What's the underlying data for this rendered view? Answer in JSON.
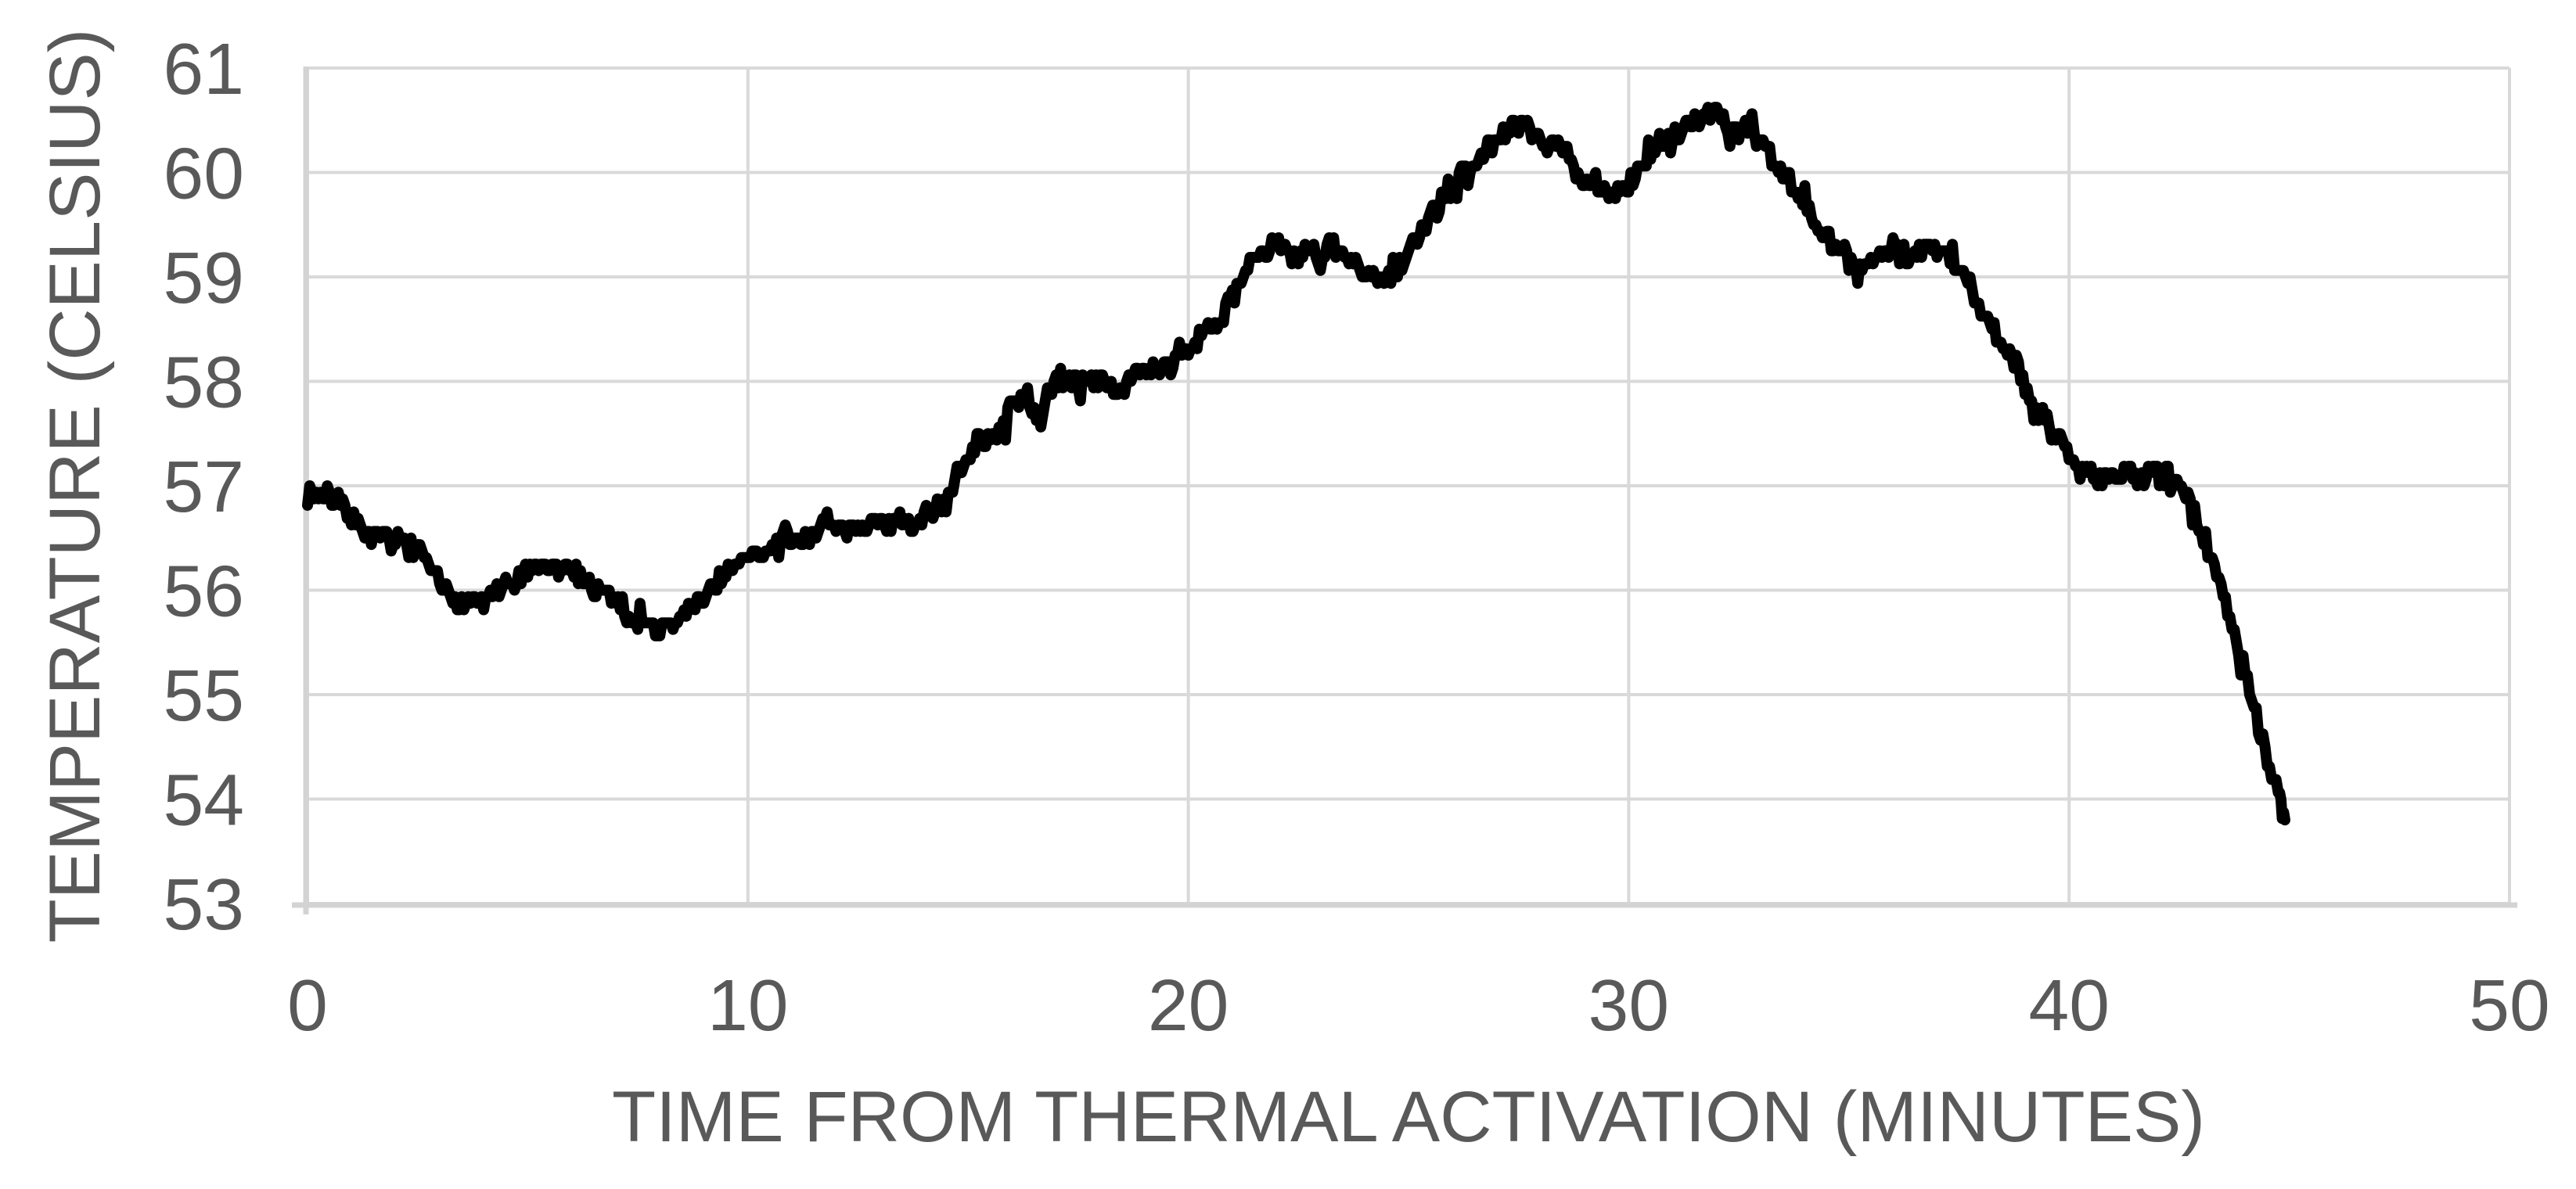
{
  "chart_data": {
    "type": "line",
    "title": "",
    "xlabel": "TIME FROM THERMAL ACTIVATION (MINUTES)",
    "ylabel": "TEMPERATURE (CELSIUS)",
    "xlim": [
      0,
      50
    ],
    "ylim": [
      53,
      61
    ],
    "x_ticks": [
      0,
      10,
      20,
      30,
      40,
      50
    ],
    "y_ticks": [
      53,
      54,
      55,
      56,
      57,
      58,
      59,
      60,
      61
    ],
    "grid": true,
    "legend_position": "none",
    "series": [
      {
        "name": "temperature",
        "points": [
          [
            0.0,
            56.95
          ],
          [
            0.25,
            56.92
          ],
          [
            0.5,
            56.88
          ],
          [
            0.75,
            56.8
          ],
          [
            1.0,
            56.7
          ],
          [
            1.25,
            56.6
          ],
          [
            1.5,
            56.52
          ],
          [
            1.75,
            56.48
          ],
          [
            2.0,
            56.45
          ],
          [
            2.25,
            56.48
          ],
          [
            2.5,
            56.35
          ],
          [
            2.75,
            56.22
          ],
          [
            3.0,
            56.05
          ],
          [
            3.25,
            55.95
          ],
          [
            3.5,
            55.9
          ],
          [
            3.75,
            55.93
          ],
          [
            4.0,
            55.9
          ],
          [
            4.25,
            55.95
          ],
          [
            4.5,
            56.02
          ],
          [
            4.75,
            56.1
          ],
          [
            5.0,
            56.15
          ],
          [
            5.25,
            56.2
          ],
          [
            5.5,
            56.22
          ],
          [
            5.75,
            56.2
          ],
          [
            6.0,
            56.17
          ],
          [
            6.25,
            56.12
          ],
          [
            6.5,
            56.02
          ],
          [
            6.75,
            55.97
          ],
          [
            7.0,
            55.92
          ],
          [
            7.25,
            55.78
          ],
          [
            7.5,
            55.7
          ],
          [
            7.75,
            55.65
          ],
          [
            8.0,
            55.62
          ],
          [
            8.25,
            55.65
          ],
          [
            8.5,
            55.74
          ],
          [
            8.75,
            55.85
          ],
          [
            9.0,
            55.95
          ],
          [
            9.25,
            56.05
          ],
          [
            9.5,
            56.15
          ],
          [
            9.75,
            56.22
          ],
          [
            10.0,
            56.3
          ],
          [
            10.25,
            56.35
          ],
          [
            10.5,
            56.4
          ],
          [
            10.75,
            56.45
          ],
          [
            11.0,
            56.48
          ],
          [
            11.25,
            56.5
          ],
          [
            11.5,
            56.52
          ],
          [
            11.75,
            56.75
          ],
          [
            12.0,
            56.55
          ],
          [
            12.25,
            56.55
          ],
          [
            12.5,
            56.6
          ],
          [
            12.75,
            56.62
          ],
          [
            13.0,
            56.6
          ],
          [
            13.25,
            56.62
          ],
          [
            13.5,
            56.65
          ],
          [
            13.75,
            56.62
          ],
          [
            14.0,
            56.68
          ],
          [
            14.25,
            56.75
          ],
          [
            14.5,
            56.85
          ],
          [
            14.75,
            57.1
          ],
          [
            15.0,
            57.3
          ],
          [
            15.25,
            57.45
          ],
          [
            15.5,
            57.45
          ],
          [
            15.75,
            57.5
          ],
          [
            16.0,
            57.8
          ],
          [
            16.25,
            57.85
          ],
          [
            16.5,
            57.65
          ],
          [
            16.75,
            57.8
          ],
          [
            17.0,
            58.0
          ],
          [
            17.25,
            58.05
          ],
          [
            17.5,
            57.95
          ],
          [
            17.75,
            58.0
          ],
          [
            18.0,
            58.05
          ],
          [
            18.25,
            57.9
          ],
          [
            18.5,
            58.0
          ],
          [
            18.75,
            58.05
          ],
          [
            19.0,
            58.05
          ],
          [
            19.25,
            58.1
          ],
          [
            19.5,
            58.15
          ],
          [
            19.75,
            58.2
          ],
          [
            20.0,
            58.3
          ],
          [
            20.25,
            58.4
          ],
          [
            20.5,
            58.5
          ],
          [
            20.75,
            58.62
          ],
          [
            21.0,
            58.8
          ],
          [
            21.25,
            59.0
          ],
          [
            21.5,
            59.15
          ],
          [
            21.75,
            59.25
          ],
          [
            22.0,
            59.3
          ],
          [
            22.25,
            59.25
          ],
          [
            22.5,
            59.2
          ],
          [
            22.75,
            59.3
          ],
          [
            23.0,
            59.1
          ],
          [
            23.25,
            59.35
          ],
          [
            23.5,
            59.2
          ],
          [
            23.75,
            59.15
          ],
          [
            24.0,
            59.05
          ],
          [
            24.25,
            59.0
          ],
          [
            24.5,
            58.95
          ],
          [
            24.75,
            59.05
          ],
          [
            25.0,
            59.25
          ],
          [
            25.25,
            59.4
          ],
          [
            25.5,
            59.6
          ],
          [
            25.75,
            59.7
          ],
          [
            26.0,
            59.85
          ],
          [
            26.25,
            60.0
          ],
          [
            26.5,
            60.1
          ],
          [
            26.75,
            60.2
          ],
          [
            27.0,
            60.3
          ],
          [
            27.25,
            60.4
          ],
          [
            27.5,
            60.45
          ],
          [
            27.75,
            60.42
          ],
          [
            28.0,
            60.32
          ],
          [
            28.25,
            60.3
          ],
          [
            28.5,
            60.25
          ],
          [
            28.75,
            60.05
          ],
          [
            29.0,
            59.95
          ],
          [
            29.25,
            59.9
          ],
          [
            29.5,
            59.8
          ],
          [
            29.75,
            59.82
          ],
          [
            30.0,
            59.9
          ],
          [
            30.25,
            60.05
          ],
          [
            30.5,
            60.2
          ],
          [
            30.75,
            60.3
          ],
          [
            31.0,
            60.35
          ],
          [
            31.25,
            60.42
          ],
          [
            31.5,
            60.5
          ],
          [
            31.75,
            60.55
          ],
          [
            32.0,
            60.55
          ],
          [
            32.25,
            60.45
          ],
          [
            32.5,
            60.4
          ],
          [
            32.75,
            60.45
          ],
          [
            33.0,
            60.3
          ],
          [
            33.25,
            60.15
          ],
          [
            33.5,
            60.0
          ],
          [
            33.75,
            59.85
          ],
          [
            34.0,
            59.7
          ],
          [
            34.25,
            59.55
          ],
          [
            34.5,
            59.4
          ],
          [
            34.75,
            59.28
          ],
          [
            35.0,
            59.15
          ],
          [
            35.25,
            59.05
          ],
          [
            35.5,
            59.15
          ],
          [
            35.75,
            59.25
          ],
          [
            36.0,
            59.3
          ],
          [
            36.25,
            59.15
          ],
          [
            36.5,
            59.2
          ],
          [
            36.75,
            59.3
          ],
          [
            37.0,
            59.25
          ],
          [
            37.25,
            59.2
          ],
          [
            37.5,
            59.1
          ],
          [
            37.75,
            58.95
          ],
          [
            38.0,
            58.7
          ],
          [
            38.25,
            58.5
          ],
          [
            38.5,
            58.35
          ],
          [
            38.75,
            58.2
          ],
          [
            39.0,
            57.95
          ],
          [
            39.25,
            57.75
          ],
          [
            39.5,
            57.6
          ],
          [
            39.75,
            57.45
          ],
          [
            40.0,
            57.3
          ],
          [
            40.25,
            57.2
          ],
          [
            40.5,
            57.12
          ],
          [
            40.75,
            57.05
          ],
          [
            41.0,
            57.1
          ],
          [
            41.25,
            57.15
          ],
          [
            41.5,
            57.1
          ],
          [
            41.75,
            57.05
          ],
          [
            42.0,
            57.1
          ],
          [
            42.25,
            57.05
          ],
          [
            42.5,
            56.98
          ],
          [
            42.75,
            56.85
          ],
          [
            43.0,
            56.6
          ],
          [
            43.25,
            56.3
          ],
          [
            43.5,
            55.95
          ],
          [
            43.75,
            55.6
          ],
          [
            44.0,
            55.2
          ],
          [
            44.25,
            54.8
          ],
          [
            44.5,
            54.45
          ],
          [
            44.75,
            54.05
          ],
          [
            44.9,
            53.8
          ]
        ]
      }
    ],
    "noise": {
      "amplitude": 0.085,
      "substeps": 5,
      "seed": 7,
      "quantize": 0.0625,
      "spike_chance": 0.1,
      "spike_factor": 2.1
    },
    "style": {
      "line_color": "#000000",
      "line_width": 14,
      "grid_color": "#d9d9d9",
      "axis_color": "#d3d3d3",
      "label_color": "#595959",
      "background": "#ffffff"
    }
  }
}
